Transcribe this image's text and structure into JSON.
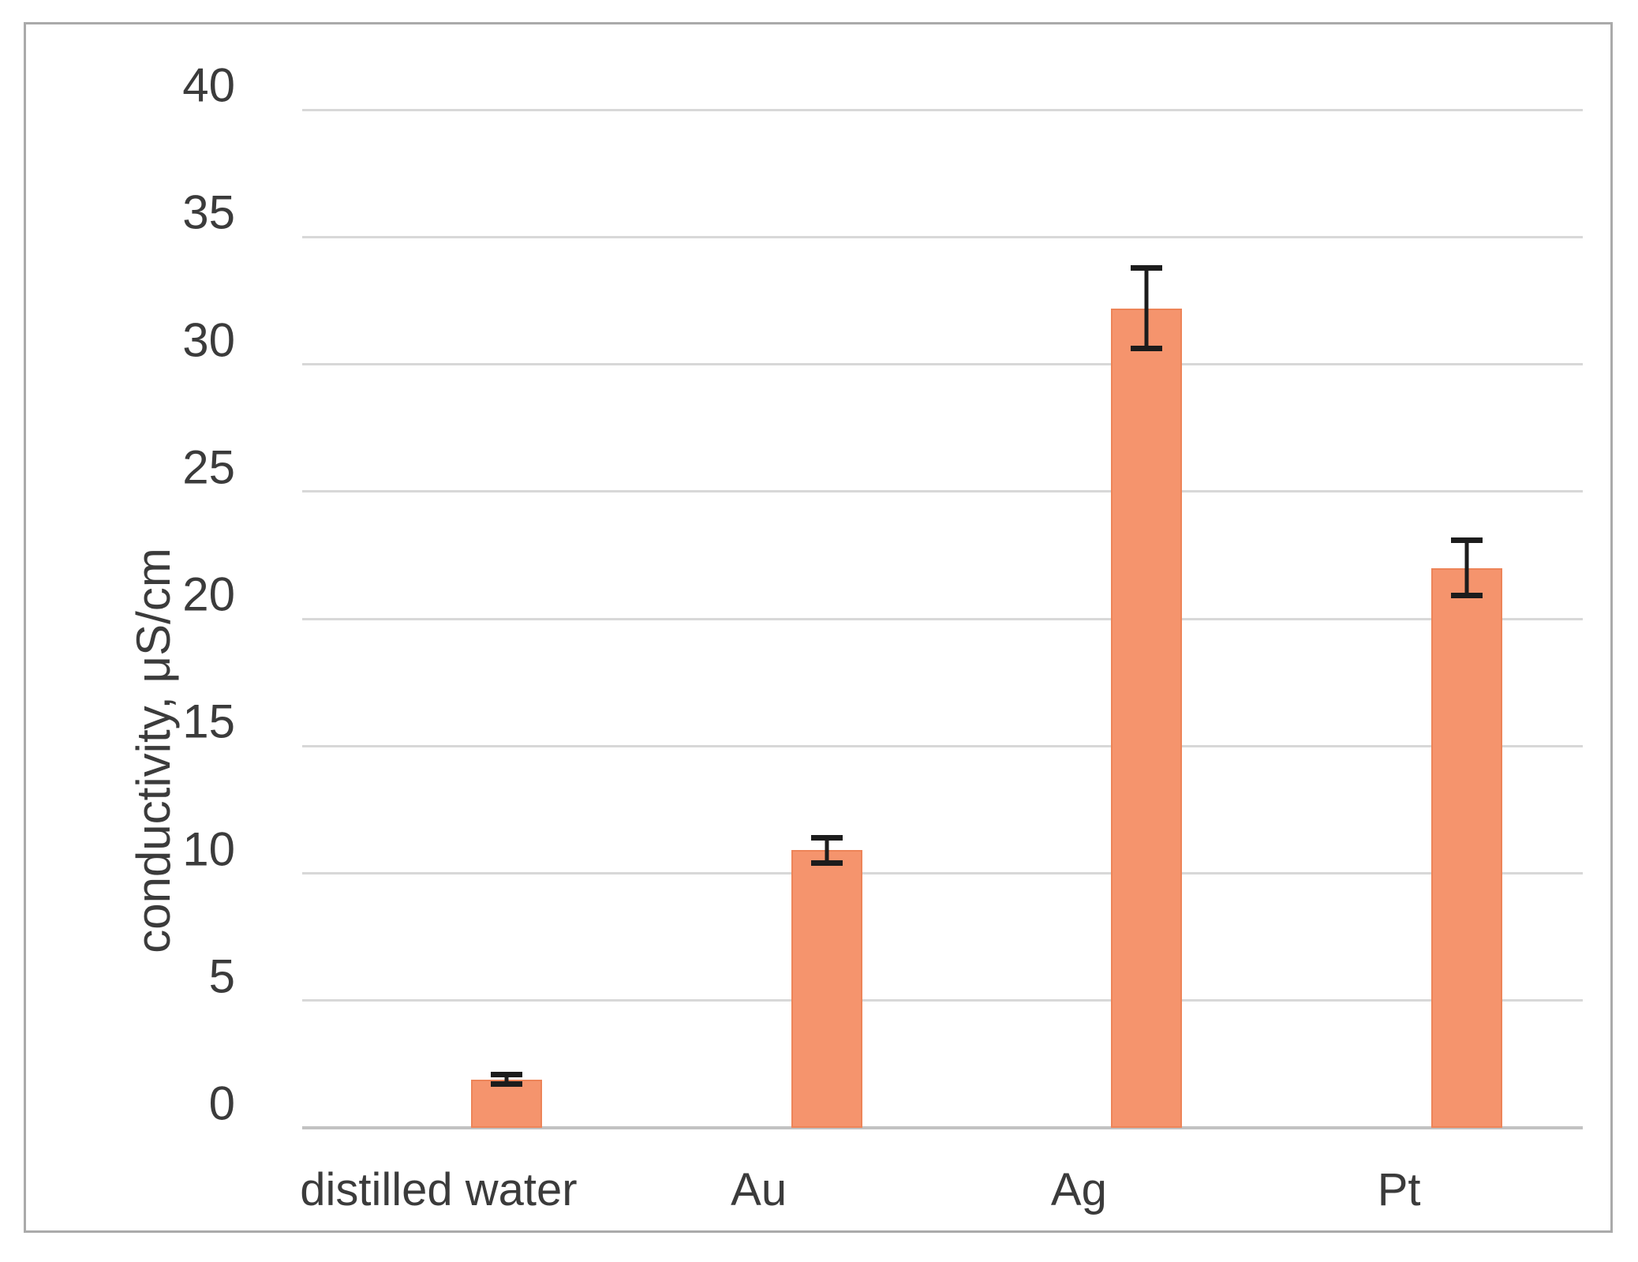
{
  "chart_data": {
    "type": "bar",
    "categories": [
      "distilled water",
      "Au",
      "Ag",
      "Pt"
    ],
    "values": [
      1.9,
      10.9,
      32.2,
      22
    ],
    "error_bars": [
      0.2,
      0.5,
      1.6,
      1.1
    ],
    "title": "",
    "xlabel": "",
    "ylabel": "conductivity, μS/cm",
    "ylim": [
      0,
      40
    ],
    "yticks": [
      0,
      5,
      10,
      15,
      20,
      25,
      30,
      35,
      40
    ],
    "grid": "horizontal",
    "legend": "none",
    "bar_color": "#F5946D",
    "error_bar_color": "#1C1C1C",
    "gridline_color": "#D8D8D8",
    "axis_line_color": "#C2C2C2",
    "text_color": "#3B3B3B",
    "frame_border_color": "#AAAAAA"
  }
}
